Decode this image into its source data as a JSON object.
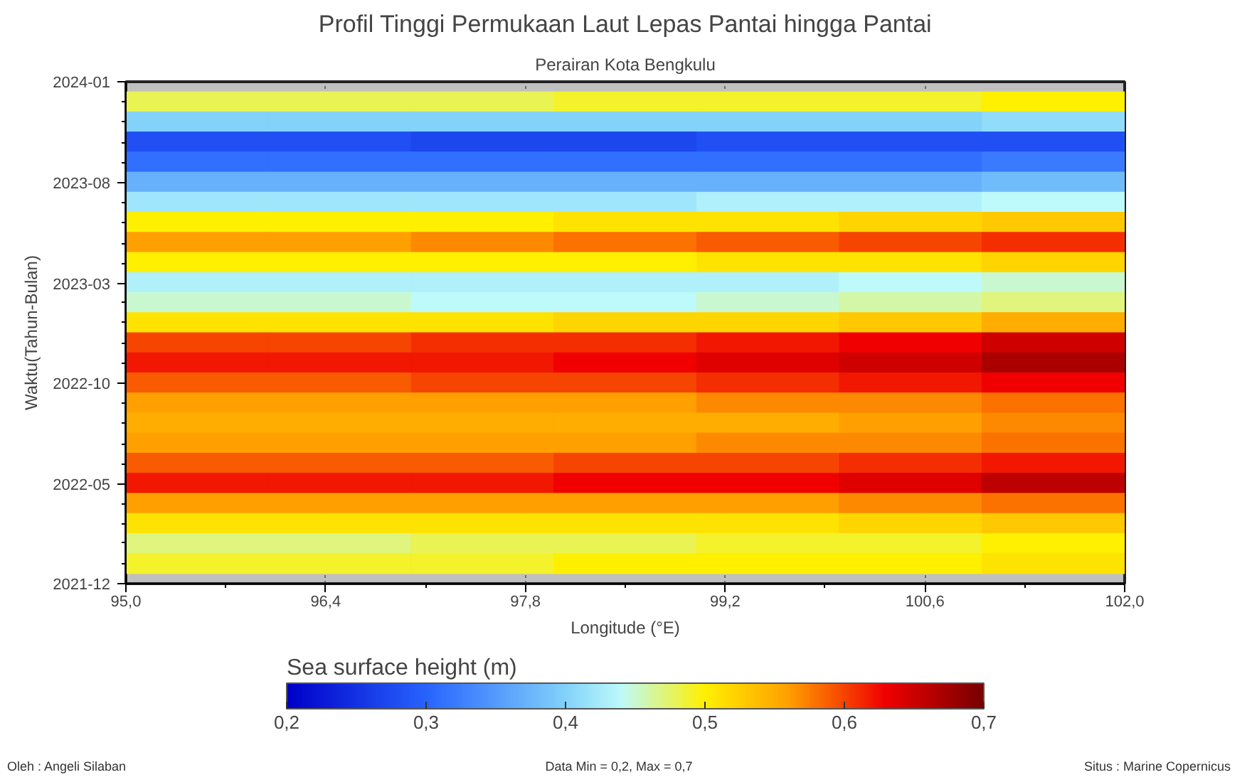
{
  "chart_data": {
    "type": "heatmap",
    "title": "Profil Tinggi Permukaan Laut Lepas Pantai hingga Pantai",
    "subtitle": "Perairan Kota Bengkulu",
    "xlabel": "Longitude (°E)",
    "ylabel": "Waktu(Tahun-Bulan)",
    "clabel": "Sea surface height (m)",
    "x": [
      95.5,
      96.5,
      97.5,
      98.5,
      99.5,
      100.5,
      101.5
    ],
    "cells": [
      [
        0.48,
        0.48,
        0.48,
        0.49,
        0.49,
        0.49,
        0.5
      ],
      [
        0.4,
        0.4,
        0.4,
        0.4,
        0.4,
        0.4,
        0.41
      ],
      [
        0.28,
        0.28,
        0.27,
        0.27,
        0.28,
        0.28,
        0.28
      ],
      [
        0.31,
        0.31,
        0.31,
        0.31,
        0.31,
        0.31,
        0.32
      ],
      [
        0.37,
        0.37,
        0.37,
        0.37,
        0.37,
        0.37,
        0.38
      ],
      [
        0.42,
        0.42,
        0.42,
        0.42,
        0.43,
        0.43,
        0.44
      ],
      [
        0.5,
        0.5,
        0.5,
        0.51,
        0.51,
        0.52,
        0.53
      ],
      [
        0.56,
        0.56,
        0.57,
        0.58,
        0.59,
        0.6,
        0.61
      ],
      [
        0.5,
        0.5,
        0.5,
        0.5,
        0.51,
        0.51,
        0.52
      ],
      [
        0.43,
        0.43,
        0.43,
        0.43,
        0.43,
        0.44,
        0.45
      ],
      [
        0.45,
        0.45,
        0.44,
        0.44,
        0.45,
        0.46,
        0.47
      ],
      [
        0.51,
        0.51,
        0.51,
        0.52,
        0.52,
        0.53,
        0.55
      ],
      [
        0.6,
        0.6,
        0.61,
        0.61,
        0.62,
        0.63,
        0.65
      ],
      [
        0.62,
        0.62,
        0.62,
        0.63,
        0.64,
        0.65,
        0.67
      ],
      [
        0.59,
        0.59,
        0.6,
        0.6,
        0.61,
        0.62,
        0.63
      ],
      [
        0.56,
        0.56,
        0.56,
        0.56,
        0.57,
        0.57,
        0.58
      ],
      [
        0.55,
        0.55,
        0.55,
        0.55,
        0.55,
        0.56,
        0.57
      ],
      [
        0.56,
        0.56,
        0.56,
        0.56,
        0.57,
        0.57,
        0.58
      ],
      [
        0.59,
        0.59,
        0.59,
        0.6,
        0.6,
        0.61,
        0.62
      ],
      [
        0.62,
        0.62,
        0.62,
        0.63,
        0.63,
        0.64,
        0.66
      ],
      [
        0.56,
        0.56,
        0.56,
        0.56,
        0.56,
        0.57,
        0.58
      ],
      [
        0.51,
        0.51,
        0.51,
        0.51,
        0.51,
        0.52,
        0.53
      ],
      [
        0.47,
        0.47,
        0.48,
        0.48,
        0.49,
        0.49,
        0.5
      ],
      [
        0.49,
        0.49,
        0.49,
        0.5,
        0.5,
        0.5,
        0.51
      ]
    ],
    "xlim": [
      95.0,
      102.0
    ],
    "xticks": [
      {
        "value": 95.0,
        "label": "95,0"
      },
      {
        "value": 96.4,
        "label": "96,4"
      },
      {
        "value": 97.8,
        "label": "97,8"
      },
      {
        "value": 99.2,
        "label": "99,2"
      },
      {
        "value": 100.6,
        "label": "100,6"
      },
      {
        "value": 102.0,
        "label": "102,0"
      }
    ],
    "ylim": [
      "2021-12",
      "2024-01"
    ],
    "yticks": [
      "2021-12",
      "2022-05",
      "2022-10",
      "2023-03",
      "2023-08",
      "2024-01"
    ],
    "clim": [
      0.2,
      0.7
    ],
    "cticks": [
      {
        "value": 0.2,
        "label": "0,2"
      },
      {
        "value": 0.3,
        "label": "0,3"
      },
      {
        "value": 0.4,
        "label": "0,4"
      },
      {
        "value": 0.5,
        "label": "0,5"
      },
      {
        "value": 0.6,
        "label": "0,6"
      },
      {
        "value": 0.7,
        "label": "0,7"
      }
    ],
    "grid": true,
    "annotations": [
      "Oleh : Angeli Silaban",
      "Data Min = 0,2, Max = 0,7",
      "Situs : Marine Copernicus"
    ]
  }
}
